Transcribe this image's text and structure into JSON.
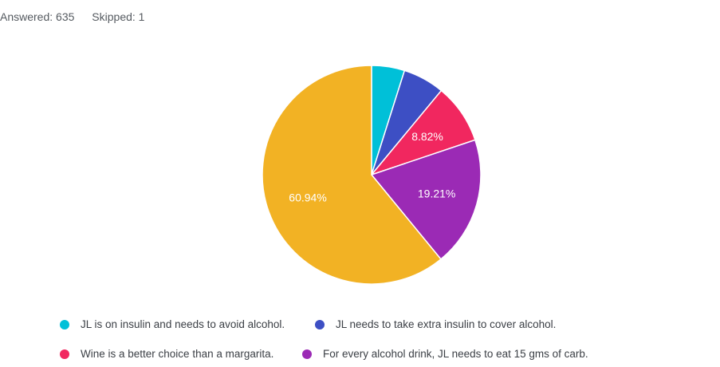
{
  "header": {
    "question_fragment": "",
    "answered": "Answered: 635",
    "skipped": "Skipped: 1"
  },
  "chart_data": {
    "type": "pie",
    "slices": [
      {
        "label": "JL is on insulin and needs to avoid alcohol.",
        "value": 4.88,
        "color": "#00c0d8",
        "show_label": false,
        "display": "4.88%"
      },
      {
        "label": "JL needs to take extra insulin to cover alcohol.",
        "value": 6.14,
        "color": "#3d4fc4",
        "show_label": false,
        "display": "6.14%"
      },
      {
        "label": "Wine is a better choice than a margarita.",
        "value": 8.82,
        "color": "#f1275f",
        "show_label": true,
        "display": "8.82%"
      },
      {
        "label": "For every alcohol drink, JL needs to eat 15 gms of carb.",
        "value": 19.21,
        "color": "#9b2ab5",
        "show_label": true,
        "display": "19.21%"
      },
      {
        "label": "",
        "value": 60.94,
        "color": "#f2b224",
        "show_label": true,
        "display": "60.94%"
      }
    ],
    "legend": [
      {
        "label": "JL is on insulin and needs to avoid alcohol.",
        "color": "#00c0d8"
      },
      {
        "label": "JL needs to take extra insulin to cover alcohol.",
        "color": "#3d4fc4"
      },
      {
        "label": "Wine is a better choice than a margarita.",
        "color": "#f1275f"
      },
      {
        "label": "For every alcohol drink, JL needs to eat 15 gms of carb.",
        "color": "#9b2ab5"
      }
    ],
    "legend_placement": "bottom"
  }
}
